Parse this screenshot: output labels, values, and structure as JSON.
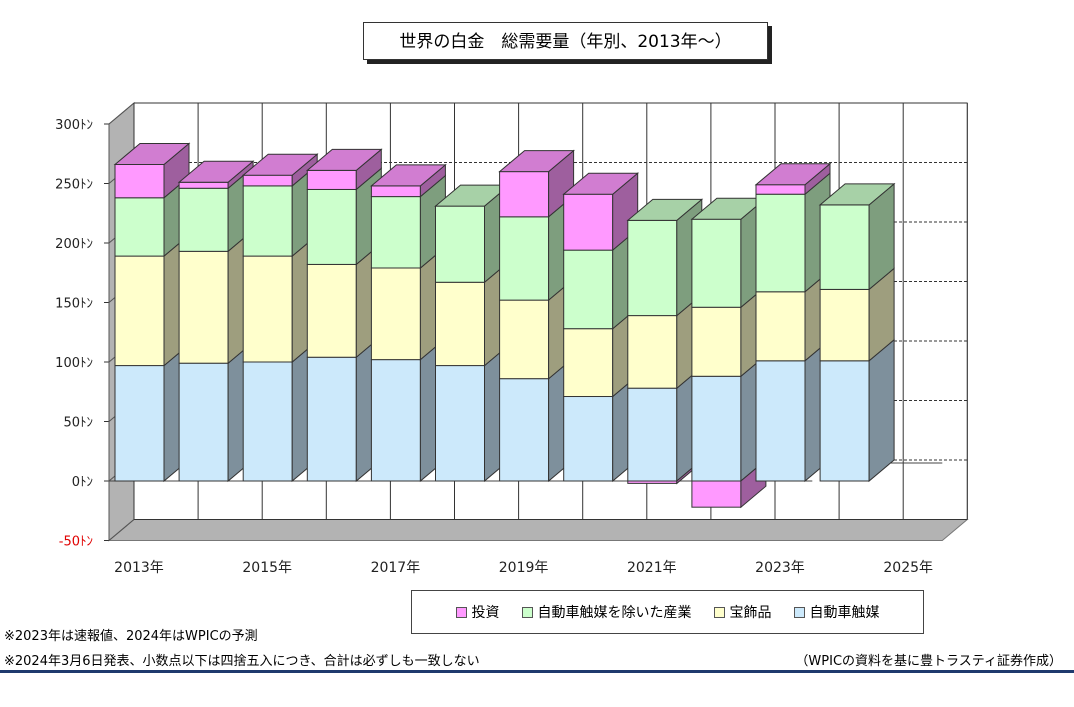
{
  "chart_data": {
    "type": "bar",
    "stacked": true,
    "title": "世界の白金　総需要量（年別、2013年～）",
    "x": [
      "2013",
      "2014",
      "2015",
      "2016",
      "2017",
      "2018",
      "2019",
      "2020",
      "2021",
      "2022",
      "2023",
      "2024"
    ],
    "x_tick_labels": [
      "2013年",
      "2015年",
      "2017年",
      "2019年",
      "2021年",
      "2023年",
      "2025年"
    ],
    "y_tick_labels": [
      "300ﾄﾝ",
      "250ﾄﾝ",
      "200ﾄﾝ",
      "150ﾄﾝ",
      "100ﾄﾝ",
      "50ﾄﾝ",
      "0ﾄﾝ",
      "-50ﾄﾝ"
    ],
    "ylim": [
      -50,
      300
    ],
    "grid": true,
    "legend_position": "bottom",
    "series": [
      {
        "name": "自動車触媒",
        "color": "#cce9fb",
        "values": [
          97,
          99,
          100,
          104,
          102,
          97,
          86,
          71,
          78,
          88,
          101,
          101
        ]
      },
      {
        "name": "宝飾品",
        "color": "#ffffcc",
        "values": [
          92,
          94,
          89,
          78,
          77,
          70,
          66,
          57,
          61,
          58,
          58,
          60
        ]
      },
      {
        "name": "自動車触媒を除いた産業",
        "color": "#ccffcc",
        "values": [
          49,
          53,
          59,
          63,
          60,
          64,
          70,
          66,
          80,
          74,
          82,
          71
        ]
      },
      {
        "name": "投資",
        "color": "#ff99ff",
        "values": [
          28,
          5,
          9,
          16,
          9,
          0,
          38,
          47,
          -2,
          -22,
          8,
          0
        ]
      }
    ]
  },
  "legend": {
    "items": [
      {
        "label": "投資",
        "color": "#ff99ff"
      },
      {
        "label": "自動車触媒を除いた産業",
        "color": "#ccffcc"
      },
      {
        "label": "宝飾品",
        "color": "#ffffcc"
      },
      {
        "label": "自動車触媒",
        "color": "#cce9fb"
      }
    ]
  },
  "notes": {
    "note1": "※2023年は速報値、2024年はWPICの予測",
    "note2": "※2024年3月6日発表、小数点以下は四捨五入につき、合計は必ずしも一致しない",
    "source": "（WPICの資料を基に豊トラスティ証券作成）"
  }
}
